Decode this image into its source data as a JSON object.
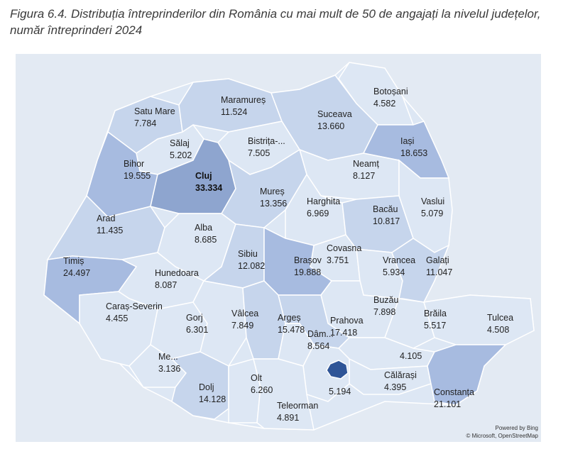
{
  "figure": {
    "title_line1": "Figura 6.4. Distribuția întreprinderilor din România cu mai mult de 50 de angajați la nivelul județelor,",
    "title_line2": "număr întreprinderi 2024"
  },
  "attribution": {
    "powered": "Powered by Bing",
    "copyright": "© Microsoft, OpenStreetMap"
  },
  "colors": {
    "background": "#e3eaf3",
    "light": "#dde7f4",
    "mid": "#c6d5ec",
    "strong": "#a7bbe0",
    "cluj": "#8ea5cf",
    "bucuresti": "#2f5597",
    "border": "#ffffff"
  },
  "counties": [
    {
      "id": "satu-mare",
      "name": "Satu Mare",
      "value": "7.784"
    },
    {
      "id": "maramures",
      "name": "Maramureș",
      "value": "11.524"
    },
    {
      "id": "botosani",
      "name": "Botoșani",
      "value": "4.582"
    },
    {
      "id": "suceava",
      "name": "Suceava",
      "value": "13.660"
    },
    {
      "id": "salaj",
      "name": "Sălaj",
      "value": "5.202"
    },
    {
      "id": "bistrita",
      "name": "Bistrița-...",
      "value": "7.505"
    },
    {
      "id": "iasi",
      "name": "Iași",
      "value": "18.653"
    },
    {
      "id": "bihor",
      "name": "Bihor",
      "value": "19.555"
    },
    {
      "id": "cluj",
      "name": "Cluj",
      "value": "33.334"
    },
    {
      "id": "neamt",
      "name": "Neamț",
      "value": "8.127"
    },
    {
      "id": "mures",
      "name": "Mureș",
      "value": "13.356"
    },
    {
      "id": "harghita",
      "name": "Harghita",
      "value": "6.969"
    },
    {
      "id": "bacau",
      "name": "Bacău",
      "value": "10.817"
    },
    {
      "id": "vaslui",
      "name": "Vaslui",
      "value": "5.079"
    },
    {
      "id": "arad",
      "name": "Arad",
      "value": "11.435"
    },
    {
      "id": "alba",
      "name": "Alba",
      "value": "8.685"
    },
    {
      "id": "covasna",
      "name": "Covasna",
      "value": "3.751"
    },
    {
      "id": "timis",
      "name": "Timiș",
      "value": "24.497"
    },
    {
      "id": "sibiu",
      "name": "Sibiu",
      "value": "12.082"
    },
    {
      "id": "brasov",
      "name": "Brașov",
      "value": "19.888"
    },
    {
      "id": "vrancea",
      "name": "Vrancea",
      "value": "5.934"
    },
    {
      "id": "galati",
      "name": "Galați",
      "value": "11.047"
    },
    {
      "id": "hunedoara",
      "name": "Hunedoara",
      "value": "8.087"
    },
    {
      "id": "caras",
      "name": "Caraș-Severin",
      "value": "4.455"
    },
    {
      "id": "buzau",
      "name": "Buzău",
      "value": "7.898"
    },
    {
      "id": "gorj",
      "name": "Gorj",
      "value": "6.301"
    },
    {
      "id": "valcea",
      "name": "Vâlcea",
      "value": "7.849"
    },
    {
      "id": "arges",
      "name": "Argeș",
      "value": "15.478"
    },
    {
      "id": "prahova",
      "name": "Prahova",
      "value": "17.418"
    },
    {
      "id": "braila",
      "name": "Brăila",
      "value": "5.517"
    },
    {
      "id": "tulcea",
      "name": "Tulcea",
      "value": "4.508"
    },
    {
      "id": "dambovita",
      "name": "Dâm...",
      "value": "8.564"
    },
    {
      "id": "mehedinti",
      "name": "Me...",
      "value": "3.136"
    },
    {
      "id": "ialomita",
      "name": "",
      "value": "4.105"
    },
    {
      "id": "calarasi",
      "name": "Călărași",
      "value": "4.395"
    },
    {
      "id": "dolj",
      "name": "Dolj",
      "value": "14.128"
    },
    {
      "id": "olt",
      "name": "Olt",
      "value": "6.260"
    },
    {
      "id": "giurgiu",
      "name": "",
      "value": "5.194"
    },
    {
      "id": "constanta",
      "name": "Constanța",
      "value": "21.101"
    },
    {
      "id": "teleorman",
      "name": "Teleorman",
      "value": "4.891"
    }
  ]
}
